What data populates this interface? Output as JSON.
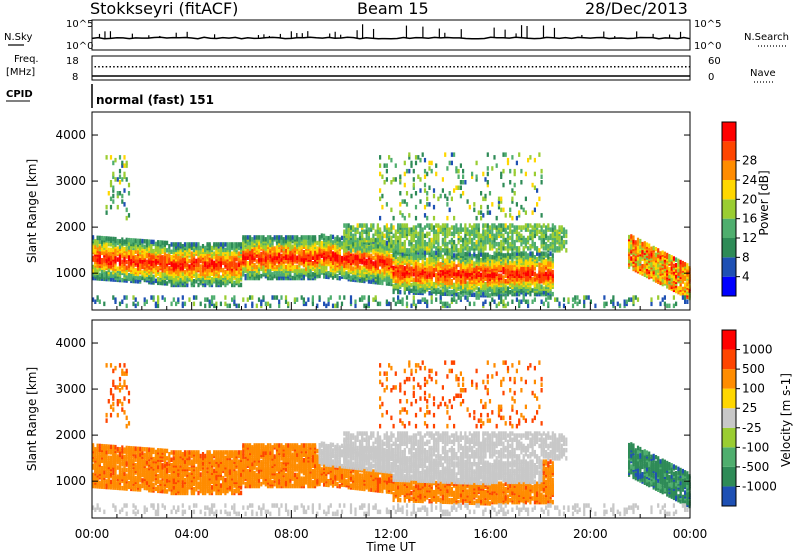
{
  "header": {
    "station": "Stokkseyri (fitACF)",
    "beam": "Beam 15",
    "date": "28/Dec/2013"
  },
  "strips": {
    "nsky_label": "N.Sky",
    "nsearch_label": "N.Search",
    "freq_label_line1": "Freq.",
    "freq_label_line2": "[MHz]",
    "nave_label": "Nave",
    "cpid_label": "CPID",
    "cpid_value": "normal (fast) 151",
    "noise_ticks": {
      "top": "10^5",
      "bottom": "10^0"
    },
    "freq_ticks": [
      "18",
      "8"
    ],
    "nave_ticks": [
      "60",
      "0"
    ]
  },
  "colors": {
    "power_scale": [
      "#0000ff",
      "#1e50b4",
      "#2e8b57",
      "#4fae6e",
      "#9acd32",
      "#ffd700",
      "#ff8c00",
      "#ff4500",
      "#ff0000"
    ],
    "velocity_scale": [
      "#1e50b4",
      "#2e8b57",
      "#4fae6e",
      "#9acd32",
      "#c8c8c8",
      "#ffd700",
      "#ff8c00",
      "#ff4500",
      "#ff0000"
    ],
    "ground_scatter": "#c8c8c8"
  },
  "chart_data": [
    {
      "type": "heatmap",
      "name": "power",
      "xlabel": "Time UT",
      "ylabel": "Slant Range [km]",
      "x_range_hours": [
        0,
        24
      ],
      "x_tick_labels": [
        "00:00",
        "04:00",
        "08:00",
        "12:00",
        "16:00",
        "20:00",
        "00:00"
      ],
      "ylim": [
        200,
        4500
      ],
      "y_ticks": [
        1000,
        2000,
        3000,
        4000
      ],
      "colorbar": {
        "label": "Power [dB]",
        "range": [
          0,
          32
        ],
        "tick_labels": [
          "4",
          "8",
          "12",
          "16",
          "20",
          "24",
          "28"
        ]
      }
    },
    {
      "type": "heatmap",
      "name": "velocity",
      "xlabel": "Time UT",
      "ylabel": "Slant Range [km]",
      "x_range_hours": [
        0,
        24
      ],
      "x_tick_labels": [
        "00:00",
        "04:00",
        "08:00",
        "12:00",
        "16:00",
        "20:00",
        "00:00"
      ],
      "ylim": [
        200,
        4500
      ],
      "y_ticks": [
        1000,
        2000,
        3000,
        4000
      ],
      "colorbar": {
        "label": "Velocity [m s-1]",
        "tick_labels": [
          "1000",
          "500",
          "100",
          "25",
          "-25",
          "-100",
          "-500",
          "-1000"
        ]
      }
    }
  ]
}
